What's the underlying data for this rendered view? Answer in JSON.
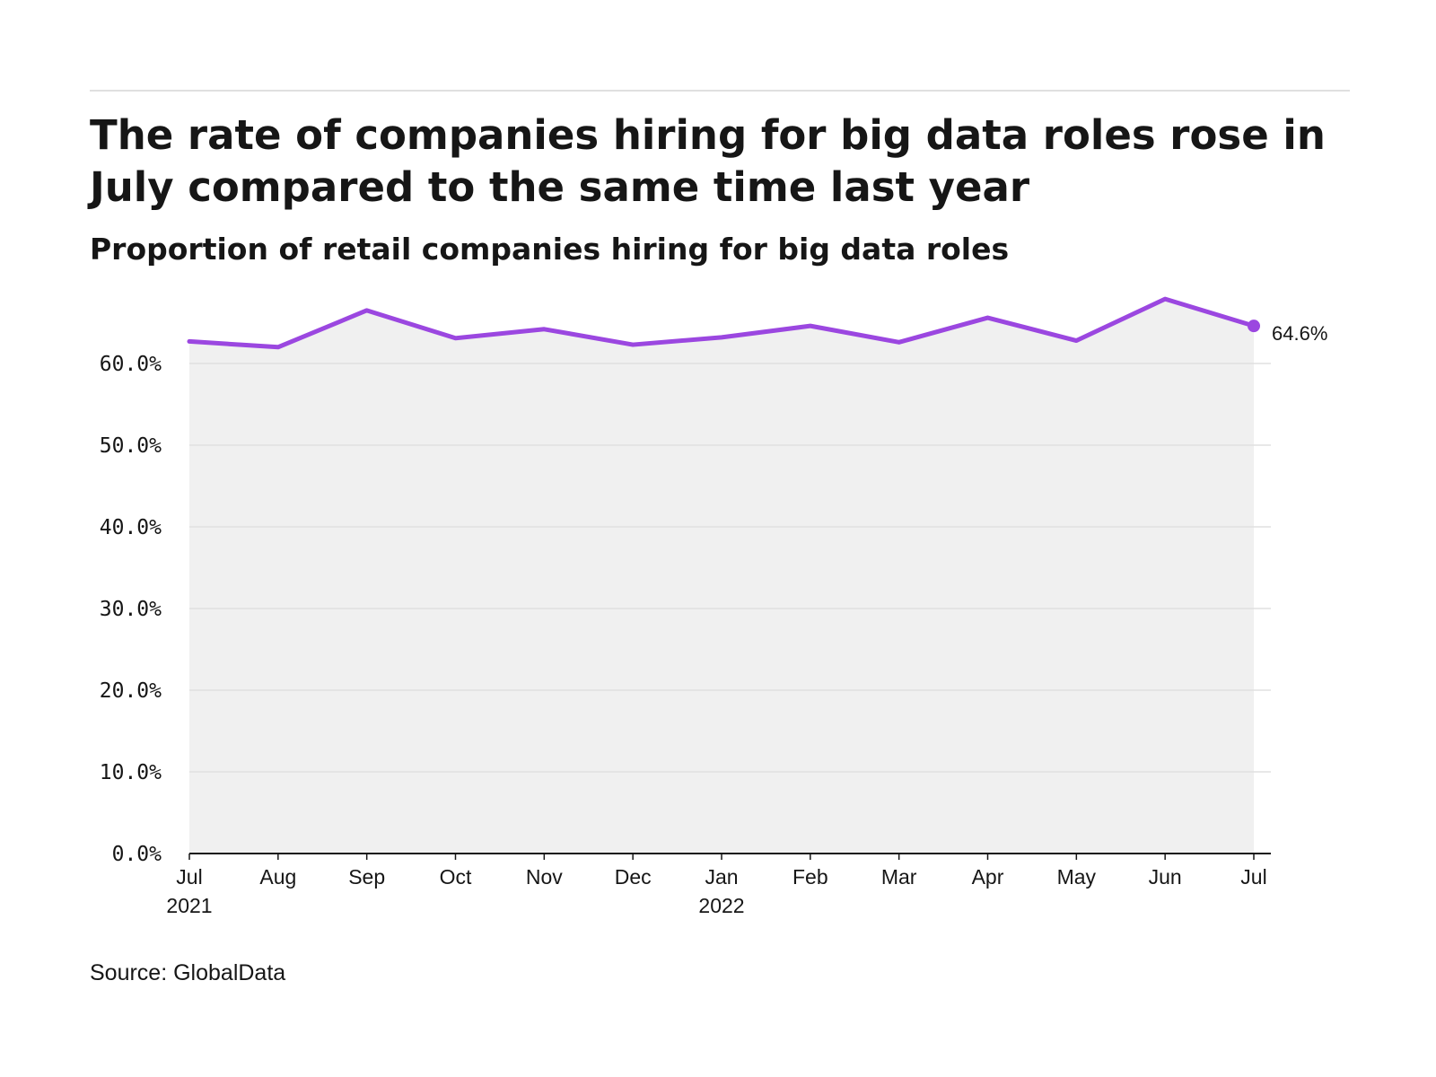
{
  "header": {
    "title": "The rate of companies hiring for big data roles rose in July compared to the same time last year",
    "subtitle": "Proportion of retail companies hiring for big data roles"
  },
  "footer": {
    "source": "Source: GlobalData"
  },
  "colors": {
    "line": "#9b47e0",
    "area": "#f0f0f0",
    "grid": "#e0e0e0",
    "axis": "#161616"
  },
  "chart_data": {
    "type": "line",
    "x": [
      "Jul 2021",
      "Aug 2021",
      "Sep 2021",
      "Oct 2021",
      "Nov 2021",
      "Dec 2021",
      "Jan 2022",
      "Feb 2022",
      "Mar 2022",
      "Apr 2022",
      "May 2022",
      "Jun 2022",
      "Jul 2022"
    ],
    "tick_labels": [
      {
        "month": "Jul",
        "year": "2021"
      },
      {
        "month": "Aug",
        "year": ""
      },
      {
        "month": "Sep",
        "year": ""
      },
      {
        "month": "Oct",
        "year": ""
      },
      {
        "month": "Nov",
        "year": ""
      },
      {
        "month": "Dec",
        "year": ""
      },
      {
        "month": "Jan",
        "year": "2022"
      },
      {
        "month": "Feb",
        "year": ""
      },
      {
        "month": "Mar",
        "year": ""
      },
      {
        "month": "Apr",
        "year": ""
      },
      {
        "month": "May",
        "year": ""
      },
      {
        "month": "Jun",
        "year": ""
      },
      {
        "month": "Jul",
        "year": ""
      }
    ],
    "values": [
      62.7,
      62.0,
      66.5,
      63.1,
      64.2,
      62.3,
      63.2,
      64.6,
      62.6,
      65.6,
      62.8,
      67.9,
      64.6
    ],
    "y_ticks": [
      0,
      10,
      20,
      30,
      40,
      50,
      60
    ],
    "y_tick_labels": [
      "0.0%",
      "10.0%",
      "20.0%",
      "30.0%",
      "40.0%",
      "50.0%",
      "60.0%"
    ],
    "ylim": [
      0,
      70
    ],
    "end_label": "64.6%",
    "area_fill": true,
    "grid": "horizontal",
    "legend": "none"
  }
}
